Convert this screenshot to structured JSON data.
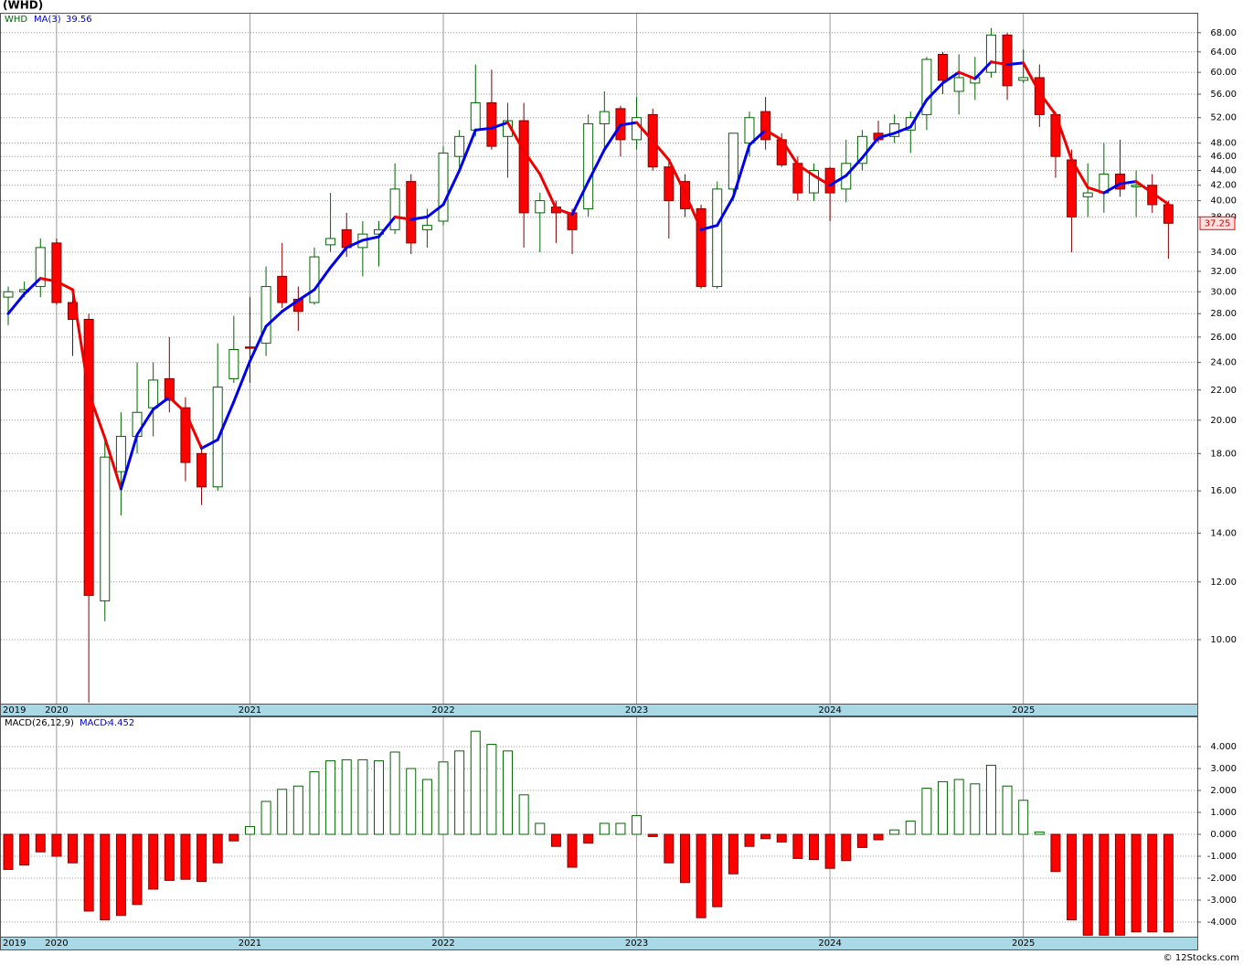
{
  "chart_data": [
    {
      "type": "candlestick",
      "title": "(WHD)",
      "ticker": "WHD",
      "log": true,
      "grid": true,
      "categories": [
        "2019",
        null,
        null,
        "2020",
        null,
        null,
        null,
        null,
        null,
        null,
        null,
        null,
        null,
        null,
        null,
        "2021",
        null,
        null,
        null,
        null,
        null,
        null,
        null,
        null,
        null,
        null,
        null,
        "2022",
        null,
        null,
        null,
        null,
        null,
        null,
        null,
        null,
        null,
        null,
        null,
        "2023",
        null,
        null,
        null,
        null,
        null,
        null,
        null,
        null,
        null,
        null,
        null,
        "2024",
        null,
        null,
        null,
        null,
        null,
        null,
        null,
        null,
        null,
        null,
        null,
        "2025",
        null,
        null,
        null,
        null,
        null,
        null,
        null,
        null,
        null
      ],
      "open": [
        29.5,
        30,
        30.5,
        35,
        29,
        27.5,
        11.3,
        17,
        19,
        20.8,
        22.8,
        20.8,
        18,
        16.2,
        22.8,
        25.2,
        25.5,
        31.5,
        29.3,
        29,
        34.8,
        36.5,
        34.5,
        36,
        36.5,
        42.5,
        36.5,
        37.5,
        46,
        50,
        54.5,
        49,
        51.5,
        38.5,
        39.2,
        38.5,
        39,
        51,
        53.5,
        48.5,
        52.5,
        44.5,
        42.5,
        39,
        30.5,
        41.5,
        48,
        53,
        48.5,
        45,
        41,
        44.3,
        41.5,
        45,
        49.5,
        49,
        50,
        52.5,
        63.5,
        56.5,
        58,
        60,
        67.5,
        58.5,
        59,
        52.5,
        45.5,
        40.5,
        41,
        43.5,
        41.8,
        42,
        39.5
      ],
      "high": [
        30.5,
        31,
        35.5,
        35.5,
        30,
        28,
        19,
        20.5,
        24,
        24,
        26,
        21.5,
        18.5,
        25.5,
        27.8,
        29.5,
        32.5,
        35,
        30.5,
        34.5,
        41,
        38.5,
        37.5,
        37.5,
        45,
        43.5,
        39,
        47.5,
        50,
        61.5,
        60.5,
        54.5,
        54.5,
        41,
        40,
        39,
        52.5,
        56.5,
        54,
        55.5,
        53.5,
        45.5,
        43.5,
        39.5,
        42.5,
        49.5,
        53,
        55.5,
        49.5,
        46,
        45,
        44.5,
        48.5,
        50,
        51.5,
        52.5,
        53,
        63,
        64,
        63.5,
        63,
        69,
        68,
        64.5,
        61.5,
        53,
        47,
        45,
        48,
        48.5,
        44,
        43.5,
        40
      ],
      "low": [
        27,
        29.5,
        29.5,
        28.8,
        24.5,
        8.2,
        10.6,
        14.8,
        18,
        19,
        20.5,
        16.5,
        15.3,
        16,
        22.5,
        22.5,
        24.5,
        28.5,
        26.5,
        28.8,
        34,
        33.5,
        31.5,
        32.5,
        36,
        33.8,
        34.5,
        37,
        44.5,
        49,
        47,
        43,
        34.5,
        34,
        35,
        33.8,
        38,
        47,
        46,
        47,
        44,
        35.5,
        38,
        30.3,
        30.3,
        40,
        46,
        47,
        44.5,
        40,
        40,
        37.5,
        39.8,
        44,
        48,
        48,
        46.5,
        50,
        56,
        52.5,
        55,
        59,
        55,
        58,
        50.5,
        43,
        34,
        38,
        38.5,
        40.5,
        38,
        38.5,
        33.3
      ],
      "close": [
        30,
        30.2,
        34.5,
        29,
        27.5,
        11.5,
        17.8,
        19,
        20.5,
        22.7,
        21.3,
        17.5,
        16.2,
        22.2,
        25,
        25.1,
        30.5,
        29,
        28.2,
        33.5,
        35.5,
        34.5,
        36,
        36.5,
        41.5,
        35,
        37,
        46.5,
        49,
        54.5,
        47.5,
        51.5,
        38.5,
        40,
        38.5,
        36.5,
        51,
        53,
        48.5,
        52,
        44.5,
        40,
        39,
        30.5,
        41.5,
        49.5,
        52,
        48.5,
        44.8,
        41,
        44,
        41,
        45,
        49,
        48.5,
        51,
        52,
        62.5,
        58.5,
        59,
        59,
        67.5,
        57.5,
        59,
        52.5,
        46,
        38,
        41,
        43.5,
        41.5,
        42,
        39.5,
        37.25
      ],
      "up_color": "#ffffff",
      "up_stroke": "#006400",
      "down_color": "#ff0000",
      "down_stroke": "#800000",
      "ma": {
        "name": "MA(3)",
        "rise_color": "#0000ee",
        "fall_color": "#ee0000",
        "values": [
          28,
          29.8,
          31.3,
          31,
          30.2,
          21.8,
          18.9,
          16.1,
          19.1,
          20.7,
          21.5,
          20.5,
          18.3,
          18.8,
          21.2,
          24.1,
          26.9,
          28.2,
          29.2,
          30.2,
          32.4,
          34.5,
          35.3,
          35.7,
          38,
          37.7,
          38,
          39.5,
          44,
          50,
          50.3,
          51.2,
          46.8,
          43.5,
          39,
          38.3,
          42.5,
          47,
          50.8,
          51.2,
          48.3,
          45.5,
          41,
          36.5,
          37,
          40.5,
          47.7,
          50,
          48.5,
          44.8,
          43.3,
          42,
          43.3,
          45.8,
          48.8,
          49.5,
          50.5,
          55,
          58,
          60,
          58.8,
          62,
          61.5,
          61.8,
          56.3,
          52.5,
          45.5,
          41.7,
          41,
          42.2,
          42.5,
          41,
          39.56
        ]
      },
      "ylim": [
        8.17,
        72.2
      ],
      "yticks": [
        {
          "value": 10,
          "label": "10.00"
        },
        {
          "value": 12,
          "label": "12.00"
        },
        {
          "value": 14,
          "label": "14.00"
        },
        {
          "value": 16,
          "label": "16.00"
        },
        {
          "value": 18,
          "label": "18.00"
        },
        {
          "value": 20,
          "label": "20.00"
        },
        {
          "value": 22,
          "label": "22.00"
        },
        {
          "value": 24,
          "label": "24.00"
        },
        {
          "value": 26,
          "label": "26.00"
        },
        {
          "value": 28,
          "label": "28.00"
        },
        {
          "value": 30,
          "label": "30.00"
        },
        {
          "value": 32,
          "label": "32.00"
        },
        {
          "value": 34,
          "label": "34.00"
        },
        {
          "value": 38,
          "label": "38.00"
        },
        {
          "value": 40,
          "label": "40.00"
        },
        {
          "value": 42,
          "label": "42.00"
        },
        {
          "value": 44,
          "label": "44.00"
        },
        {
          "value": 46,
          "label": "46.00"
        },
        {
          "value": 48,
          "label": "48.00"
        },
        {
          "value": 52,
          "label": "52.00"
        },
        {
          "value": 56,
          "label": "56.00"
        },
        {
          "value": 60,
          "label": "60.00"
        },
        {
          "value": 64,
          "label": "64.00"
        },
        {
          "value": 68,
          "label": "68.00"
        }
      ]
    },
    {
      "type": "bar",
      "name": "MACD(26,12,9)",
      "legend": "MACD:",
      "grid": true,
      "pos_color": "#ffffff",
      "pos_stroke": "#006400",
      "neg_color": "#ff0000",
      "neg_stroke": "#800000",
      "values": [
        -1.6,
        -1.4,
        -0.8,
        -1.0,
        -1.3,
        -3.5,
        -3.9,
        -3.7,
        -3.2,
        -2.5,
        -2.1,
        -2.05,
        -2.15,
        -1.3,
        -0.3,
        0.35,
        1.5,
        2.05,
        2.2,
        2.85,
        3.35,
        3.4,
        3.4,
        3.35,
        3.75,
        3.0,
        2.5,
        3.3,
        3.8,
        4.7,
        4.1,
        3.8,
        1.8,
        0.5,
        -0.55,
        -1.5,
        -0.4,
        0.5,
        0.5,
        0.85,
        -0.1,
        -1.3,
        -2.2,
        -3.8,
        -3.3,
        -1.8,
        -0.55,
        -0.2,
        -0.35,
        -1.1,
        -1.15,
        -1.55,
        -1.2,
        -0.6,
        -0.25,
        0.2,
        0.6,
        2.1,
        2.4,
        2.5,
        2.3,
        3.15,
        2.2,
        1.55,
        0.1,
        -1.7,
        -3.9,
        -4.6,
        -4.6,
        -4.6,
        -4.45,
        -4.45,
        -4.452
      ],
      "ylim": [
        -4.667,
        5.333
      ],
      "yticks": [
        {
          "value": 4,
          "label": "4.000"
        },
        {
          "value": 3,
          "label": "3.000"
        },
        {
          "value": 2,
          "label": "2.000"
        },
        {
          "value": 1,
          "label": "1.000"
        },
        {
          "value": 0,
          "label": "0.000"
        },
        {
          "value": -1,
          "label": "-1.000"
        },
        {
          "value": -2,
          "label": "-2.000"
        },
        {
          "value": -3,
          "label": "-3.000"
        },
        {
          "value": -4,
          "label": "-4.000"
        }
      ]
    }
  ],
  "copyright": "© 12Stocks.com"
}
